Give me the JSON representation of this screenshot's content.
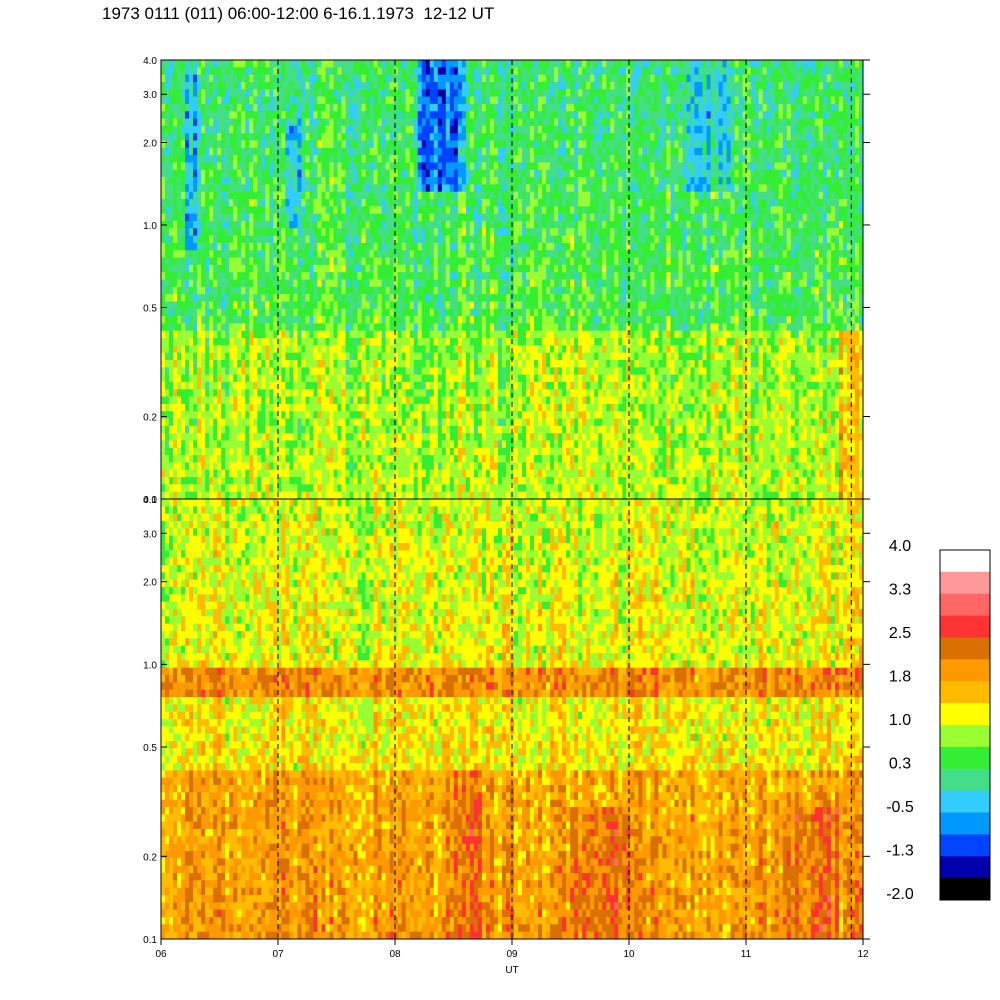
{
  "title": "1973 0111 (011) 06:00-12:00 6-16.1.1973  12-12 UT",
  "chart_data": {
    "type": "heatmap",
    "xlabel": "UT",
    "x_ticks": [
      "06",
      "07",
      "08",
      "09",
      "10",
      "11",
      "12"
    ],
    "x_range": [
      6,
      12
    ],
    "y_scale": "log",
    "y_range": [
      0.1,
      4.0
    ],
    "y_ticks": [
      "4.0",
      "3.0",
      "2.0",
      "1.0",
      "0.5",
      "0.2",
      "0.1"
    ],
    "y_tick_values": [
      4.0,
      3.0,
      2.0,
      1.0,
      0.5,
      0.2,
      0.1
    ],
    "panels": [
      {
        "name": "upper",
        "dominant_level": "0.3 to 1.0",
        "features": [
          {
            "type": "low-intensity band",
            "x": [
              6.2,
              6.35
            ],
            "y": [
              0.8,
              3.5
            ],
            "level": -0.5
          },
          {
            "type": "low-intensity band",
            "x": [
              7.05,
              7.2
            ],
            "y": [
              1.0,
              2.5
            ],
            "level": -0.5
          },
          {
            "type": "low-intensity band",
            "x": [
              8.2,
              8.6
            ],
            "y": [
              1.3,
              4.0
            ],
            "level": -1.3
          },
          {
            "type": "low-intensity band",
            "x": [
              10.5,
              10.9
            ],
            "y": [
              1.3,
              4.0
            ],
            "level": -0.5
          },
          {
            "type": "higher-intensity region",
            "x": [
              9.3,
              10.1
            ],
            "y": [
              0.1,
              0.4
            ],
            "level": 1.0
          },
          {
            "type": "higher-intensity region",
            "x": [
              11.8,
              12.0
            ],
            "y": [
              0.1,
              0.4
            ],
            "level": 1.8
          }
        ]
      },
      {
        "name": "lower",
        "dominant_level": "1.0 to 2.5",
        "features": [
          {
            "type": "horizontal band",
            "x": [
              6,
              12
            ],
            "y": [
              0.75,
              1.0
            ],
            "level": 2.5
          },
          {
            "type": "higher-intensity region",
            "x": [
              8.5,
              8.75
            ],
            "y": [
              0.1,
              0.4
            ],
            "level": 2.5
          },
          {
            "type": "higher-intensity region",
            "x": [
              9.5,
              10.0
            ],
            "y": [
              0.1,
              0.3
            ],
            "level": 2.5
          },
          {
            "type": "higher-intensity region",
            "x": [
              11.3,
              11.8
            ],
            "y": [
              0.1,
              0.3
            ],
            "level": 2.5
          }
        ]
      }
    ],
    "vertical_dashed_lines_at": [
      7,
      8,
      9,
      10,
      11,
      11.9
    ],
    "colorbar": {
      "labels": [
        "4.0",
        "3.3",
        "2.5",
        "1.8",
        "1.0",
        "0.3",
        "-0.5",
        "-1.3",
        "-2.0"
      ],
      "colors": [
        "#ffffff",
        "#ff9999",
        "#ff6666",
        "#ff3333",
        "#d97000",
        "#ff9900",
        "#ffbb00",
        "#ffff00",
        "#99ff33",
        "#33ee33",
        "#44dd88",
        "#33ccff",
        "#0099ff",
        "#0044ff",
        "#0000aa",
        "#000000"
      ]
    }
  }
}
